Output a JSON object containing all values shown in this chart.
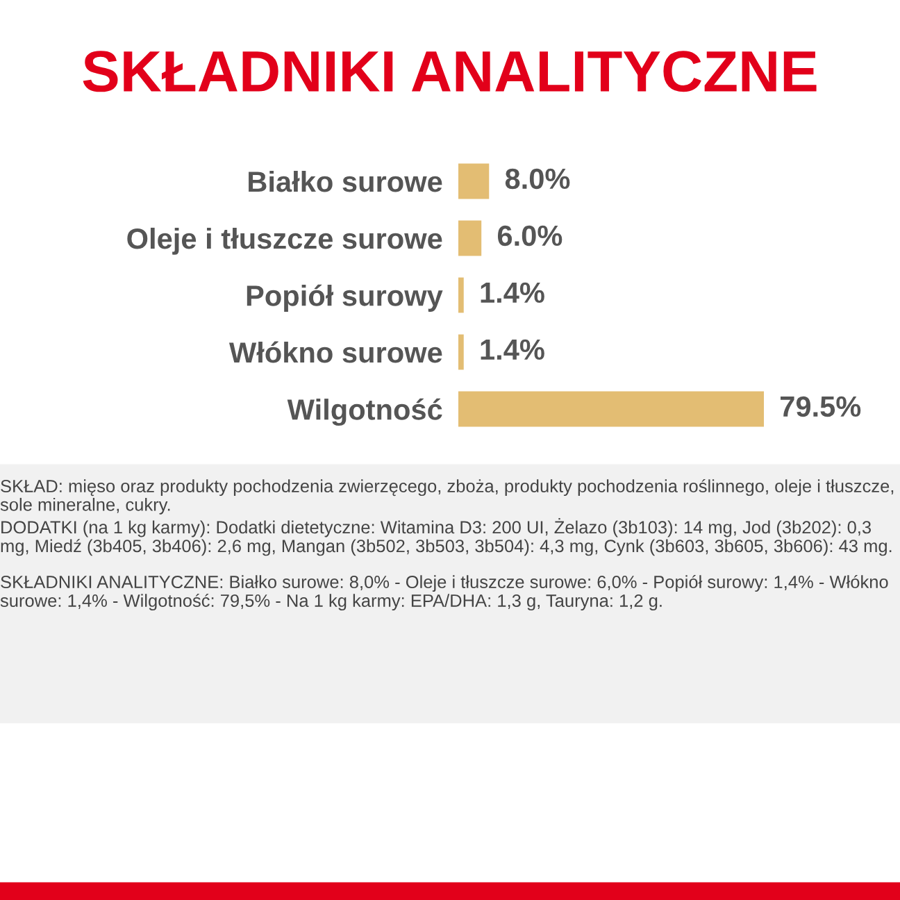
{
  "chart_data": {
    "type": "bar",
    "orientation": "horizontal",
    "title": "SKŁADNIKI ANALITYCZNE",
    "categories": [
      "Białko surowe",
      "Oleje i tłuszcze surowe",
      "Popiół surowy",
      "Włókno surowe",
      "Wilgotność"
    ],
    "values": [
      8.0,
      6.0,
      1.4,
      1.4,
      79.5
    ],
    "value_labels": [
      "8.0%",
      "6.0%",
      "1.4%",
      "1.4%",
      "79.5%"
    ],
    "color": "#e3bd73",
    "grid": false,
    "annotations": [
      "SKŁAD: mięso oraz produkty pochodzenia zwierzęcego, zboża, produkty pochodzenia roślinnego, oleje i tłuszcze, sole mineralne, cukry.",
      "DODATKI (na 1 kg karmy): Dodatki dietetyczne: Witamina D3: 200 UI, Żelazo (3b103): 14 mg, Jod (3b202): 0,3 mg, Miedź (3b405, 3b406): 2,6 mg, Mangan (3b502, 3b503, 3b504): 4,3 mg, Cynk (3b603, 3b605, 3b606): 43 mg.",
      "SKŁADNIKI ANALITYCZNE: Białko surowe: 8,0% - Oleje i tłuszcze surowe: 6,0% - Popiół surowy: 1,4% - Włókno surowe: 1,4% - Wilgotność: 79,5% - Na 1 kg karmy: EPA/DHA: 1,3 g, Tauryna: 1,2 g."
    ]
  }
}
